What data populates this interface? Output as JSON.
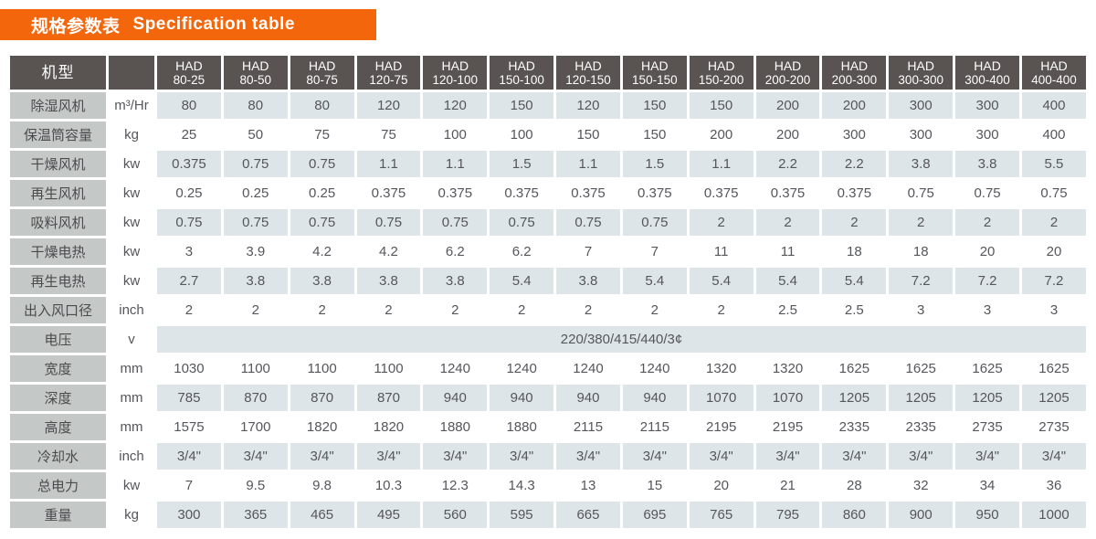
{
  "colors": {
    "accent_orange": "#f4660b",
    "header_dark": "#595351",
    "label_gray": "#c4c8c7",
    "row_shaded": "#dee5e9",
    "text_data": "#55565b"
  },
  "title": {
    "cn": "规格参数表",
    "en": "Specification table"
  },
  "table": {
    "corner_label": "机型",
    "unit_header": "",
    "brand": "HAD",
    "models": [
      "80-25",
      "80-50",
      "80-75",
      "120-75",
      "120-100",
      "150-100",
      "120-150",
      "150-150",
      "150-200",
      "200-200",
      "200-300",
      "300-300",
      "300-400",
      "400-400"
    ],
    "rows": [
      {
        "label": "除湿风机",
        "unit": "m³/Hr",
        "values": [
          "80",
          "80",
          "80",
          "120",
          "120",
          "150",
          "120",
          "150",
          "150",
          "200",
          "200",
          "300",
          "300",
          "400"
        ]
      },
      {
        "label": "保温筒容量",
        "unit": "kg",
        "values": [
          "25",
          "50",
          "75",
          "75",
          "100",
          "100",
          "150",
          "150",
          "200",
          "200",
          "300",
          "300",
          "300",
          "400"
        ]
      },
      {
        "label": "干燥风机",
        "unit": "kw",
        "values": [
          "0.375",
          "0.75",
          "0.75",
          "1.1",
          "1.1",
          "1.5",
          "1.1",
          "1.5",
          "1.1",
          "2.2",
          "2.2",
          "3.8",
          "3.8",
          "5.5"
        ]
      },
      {
        "label": "再生风机",
        "unit": "kw",
        "values": [
          "0.25",
          "0.25",
          "0.25",
          "0.375",
          "0.375",
          "0.375",
          "0.375",
          "0.375",
          "0.375",
          "0.375",
          "0.375",
          "0.75",
          "0.75",
          "0.75"
        ]
      },
      {
        "label": "吸料风机",
        "unit": "kw",
        "values": [
          "0.75",
          "0.75",
          "0.75",
          "0.75",
          "0.75",
          "0.75",
          "0.75",
          "0.75",
          "2",
          "2",
          "2",
          "2",
          "2",
          "2"
        ]
      },
      {
        "label": "干燥电热",
        "unit": "kw",
        "values": [
          "3",
          "3.9",
          "4.2",
          "4.2",
          "6.2",
          "6.2",
          "7",
          "7",
          "11",
          "11",
          "18",
          "18",
          "20",
          "20"
        ]
      },
      {
        "label": "再生电热",
        "unit": "kw",
        "values": [
          "2.7",
          "3.8",
          "3.8",
          "3.8",
          "3.8",
          "5.4",
          "3.8",
          "5.4",
          "5.4",
          "5.4",
          "5.4",
          "7.2",
          "7.2",
          "7.2"
        ]
      },
      {
        "label": "出入风口径",
        "unit": "inch",
        "values": [
          "2",
          "2",
          "2",
          "2",
          "2",
          "2",
          "2",
          "2",
          "2",
          "2.5",
          "2.5",
          "3",
          "3",
          "3"
        ]
      },
      {
        "label": "电压",
        "unit": "v",
        "merged": "220/380/415/440/3¢"
      },
      {
        "label": "宽度",
        "unit": "mm",
        "values": [
          "1030",
          "1100",
          "1100",
          "1100",
          "1240",
          "1240",
          "1240",
          "1240",
          "1320",
          "1320",
          "1625",
          "1625",
          "1625",
          "1625"
        ]
      },
      {
        "label": "深度",
        "unit": "mm",
        "values": [
          "785",
          "870",
          "870",
          "870",
          "940",
          "940",
          "940",
          "940",
          "1070",
          "1070",
          "1205",
          "1205",
          "1205",
          "1205"
        ]
      },
      {
        "label": "高度",
        "unit": "mm",
        "values": [
          "1575",
          "1700",
          "1820",
          "1820",
          "1880",
          "1880",
          "2115",
          "2115",
          "2195",
          "2195",
          "2335",
          "2335",
          "2735",
          "2735"
        ]
      },
      {
        "label": "冷却水",
        "unit": "inch",
        "values": [
          "3/4\"",
          "3/4\"",
          "3/4\"",
          "3/4\"",
          "3/4\"",
          "3/4\"",
          "3/4\"",
          "3/4\"",
          "3/4\"",
          "3/4\"",
          "3/4\"",
          "3/4\"",
          "3/4\"",
          "3/4\""
        ]
      },
      {
        "label": "总电力",
        "unit": "kw",
        "values": [
          "7",
          "9.5",
          "9.8",
          "10.3",
          "12.3",
          "14.3",
          "13",
          "15",
          "20",
          "21",
          "28",
          "32",
          "34",
          "36"
        ]
      },
      {
        "label": "重量",
        "unit": "kg",
        "values": [
          "300",
          "365",
          "465",
          "495",
          "560",
          "595",
          "665",
          "695",
          "765",
          "795",
          "860",
          "900",
          "950",
          "1000"
        ]
      }
    ]
  }
}
